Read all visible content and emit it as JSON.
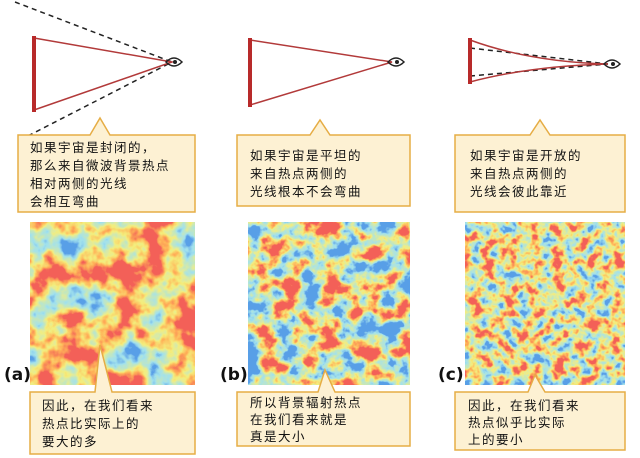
{
  "panels": [
    {
      "label": "(a)",
      "top_text": [
        "如果宇宙是封闭的，",
        "那么来自微波背景热点",
        "相对两侧的光线",
        "会相互弯曲"
      ],
      "bottom_text": [
        "因此，在我们看来",
        "热点比实际上的",
        "要大的多"
      ]
    },
    {
      "label": "(b)",
      "top_text": [
        "如果宇宙是平坦的",
        "来自热点两侧的",
        "光线根本不会弯曲"
      ],
      "bottom_text": [
        "所以背景辐射热点",
        "在我们看来就是",
        "真是大小"
      ]
    },
    {
      "label": "(c)",
      "top_text": [
        "如果宇宙是开放的",
        "来自热点两侧的",
        "光线会彼此靠近"
      ],
      "bottom_text": [
        "因此，在我们看来",
        "热点似乎比实际",
        "上的要小"
      ]
    }
  ]
}
